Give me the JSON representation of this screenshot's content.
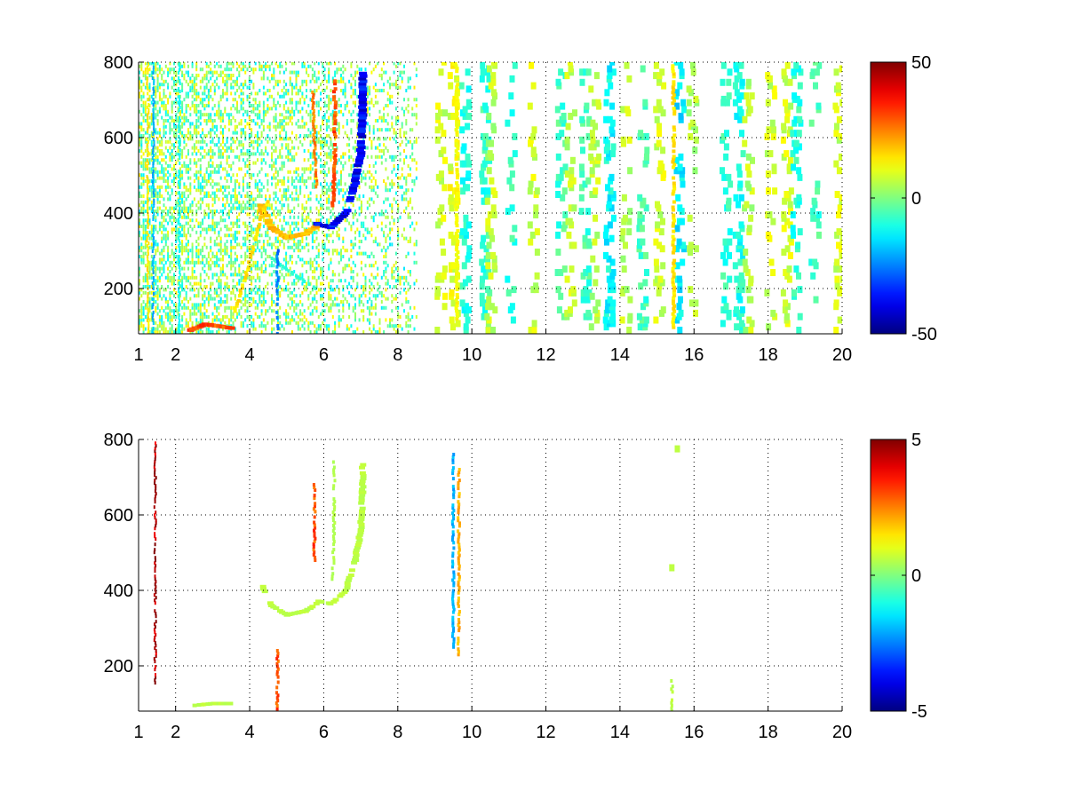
{
  "chart_data": [
    {
      "type": "heatmap",
      "title": "",
      "xlabel": "",
      "ylabel": "",
      "xlim": [
        1,
        20
      ],
      "ylim": [
        80,
        800
      ],
      "x_ticks": [
        1,
        2,
        4,
        6,
        8,
        10,
        12,
        14,
        16,
        18,
        20
      ],
      "y_ticks": [
        200,
        400,
        600,
        800
      ],
      "grid": true,
      "grid_style": "dotted",
      "colormap": "jet",
      "colorbar": {
        "min": -50,
        "max": 50,
        "ticks": [
          -50,
          0,
          50
        ]
      },
      "features": [
        {
          "kind": "band",
          "points": [
            [
              4.3,
              420
            ],
            [
              4.6,
              360
            ],
            [
              5.0,
              335
            ],
            [
              5.5,
              345
            ],
            [
              5.8,
              365
            ]
          ],
          "value": 20,
          "width": 9
        },
        {
          "kind": "band",
          "points": [
            [
              5.8,
              372
            ],
            [
              6.2,
              362
            ],
            [
              6.6,
              400
            ],
            [
              6.85,
              480
            ],
            [
              7.0,
              560
            ],
            [
              7.05,
              660
            ],
            [
              7.05,
              770
            ]
          ],
          "value": -38,
          "width": 9
        },
        {
          "kind": "band",
          "points": [
            [
              2.4,
              90
            ],
            [
              2.8,
              105
            ],
            [
              3.2,
              100
            ],
            [
              3.5,
              95
            ]
          ],
          "value": 30,
          "width": 8
        },
        {
          "kind": "band",
          "points": [
            [
              3.6,
              140
            ],
            [
              4.0,
              270
            ],
            [
              4.3,
              390
            ],
            [
              4.5,
              430
            ]
          ],
          "value": 15,
          "width": 4
        },
        {
          "kind": "band",
          "points": [
            [
              4.6,
              280
            ],
            [
              5.3,
              230
            ],
            [
              5.8,
              200
            ]
          ],
          "value": -8,
          "width": 3
        },
        {
          "kind": "band",
          "points": [
            [
              6.25,
              420
            ],
            [
              6.3,
              560
            ],
            [
              6.3,
              750
            ]
          ],
          "value": 30,
          "width": 4
        },
        {
          "kind": "band",
          "points": [
            [
              5.7,
              720
            ],
            [
              5.75,
              600
            ],
            [
              5.8,
              470
            ]
          ],
          "value": 25,
          "width": 3
        },
        {
          "kind": "band",
          "points": [
            [
              4.75,
              80
            ],
            [
              4.75,
              300
            ]
          ],
          "value": -25,
          "width": 3
        },
        {
          "kind": "band",
          "points": [
            [
              1.4,
              80
            ],
            [
              1.4,
              800
            ]
          ],
          "value": -20,
          "width": 2
        },
        {
          "kind": "band",
          "points": [
            [
              1.25,
              80
            ],
            [
              1.25,
              800
            ]
          ],
          "value": 15,
          "width": 2
        },
        {
          "kind": "band",
          "points": [
            [
              2.1,
              80
            ],
            [
              2.1,
              800
            ]
          ],
          "value": -12,
          "width": 2
        },
        {
          "kind": "band",
          "points": [
            [
              9.6,
              120
            ],
            [
              9.6,
              790
            ]
          ],
          "value": 12,
          "width": 4
        },
        {
          "kind": "band",
          "points": [
            [
              15.45,
              90
            ],
            [
              15.45,
              790
            ]
          ],
          "value": 15,
          "width": 4
        }
      ],
      "scatter_columns": [
        {
          "x": 9.1,
          "density": 0.28,
          "value": 8
        },
        {
          "x": 9.45,
          "density": 0.32,
          "value": 10
        },
        {
          "x": 9.75,
          "density": 0.3,
          "value": -10
        },
        {
          "x": 10.3,
          "density": 0.36,
          "value": -8
        },
        {
          "x": 10.45,
          "density": 0.34,
          "value": 6
        },
        {
          "x": 11.0,
          "density": 0.18,
          "value": -8
        },
        {
          "x": 11.6,
          "density": 0.18,
          "value": 8
        },
        {
          "x": 12.35,
          "density": 0.26,
          "value": -6
        },
        {
          "x": 12.6,
          "density": 0.24,
          "value": 6
        },
        {
          "x": 13.0,
          "density": 0.28,
          "value": -6
        },
        {
          "x": 13.25,
          "density": 0.3,
          "value": 6
        },
        {
          "x": 13.65,
          "density": 0.4,
          "value": -12
        },
        {
          "x": 14.1,
          "density": 0.22,
          "value": 6
        },
        {
          "x": 14.55,
          "density": 0.22,
          "value": -6
        },
        {
          "x": 15.0,
          "density": 0.32,
          "value": 8
        },
        {
          "x": 15.55,
          "density": 0.3,
          "value": -14
        },
        {
          "x": 15.9,
          "density": 0.22,
          "value": 6
        },
        {
          "x": 16.8,
          "density": 0.32,
          "value": -8
        },
        {
          "x": 17.15,
          "density": 0.38,
          "value": -10
        },
        {
          "x": 17.4,
          "density": 0.26,
          "value": 6
        },
        {
          "x": 18.0,
          "density": 0.24,
          "value": 8
        },
        {
          "x": 18.45,
          "density": 0.36,
          "value": 8
        },
        {
          "x": 18.7,
          "density": 0.34,
          "value": -8
        },
        {
          "x": 19.2,
          "density": 0.22,
          "value": -6
        },
        {
          "x": 19.85,
          "density": 0.26,
          "value": 8
        }
      ]
    },
    {
      "type": "heatmap",
      "title": "",
      "xlabel": "",
      "ylabel": "",
      "xlim": [
        1,
        20
      ],
      "ylim": [
        80,
        800
      ],
      "x_ticks": [
        1,
        2,
        4,
        6,
        8,
        10,
        12,
        14,
        16,
        18,
        20
      ],
      "y_ticks": [
        200,
        400,
        600,
        800
      ],
      "grid": true,
      "grid_style": "dotted",
      "colormap": "jet",
      "colorbar": {
        "min": -5,
        "max": 5,
        "ticks": [
          -5,
          0,
          5
        ]
      },
      "features": [
        {
          "kind": "band",
          "points": [
            [
              4.35,
              410
            ],
            [
              4.6,
              360
            ],
            [
              5.0,
              335
            ],
            [
              5.5,
              345
            ],
            [
              5.8,
              365
            ]
          ],
          "value": 0.6,
          "width": 7
        },
        {
          "kind": "band",
          "points": [
            [
              5.8,
              372
            ],
            [
              6.2,
              365
            ],
            [
              6.6,
              400
            ],
            [
              6.85,
              480
            ],
            [
              7.0,
              560
            ],
            [
              7.05,
              660
            ],
            [
              7.05,
              740
            ]
          ],
          "value": 0.6,
          "width": 7
        },
        {
          "kind": "band",
          "points": [
            [
              6.25,
              430
            ],
            [
              6.28,
              600
            ],
            [
              6.28,
              740
            ]
          ],
          "value": 0.5,
          "width": 3
        },
        {
          "kind": "band",
          "points": [
            [
              2.5,
              95
            ],
            [
              3.0,
              100
            ],
            [
              3.5,
              100
            ]
          ],
          "value": 0.6,
          "width": 5
        },
        {
          "kind": "band",
          "points": [
            [
              1.45,
              155
            ],
            [
              1.45,
              790
            ]
          ],
          "value": 4.5,
          "width": 2
        },
        {
          "kind": "band",
          "points": [
            [
              4.75,
              80
            ],
            [
              4.75,
              240
            ]
          ],
          "value": 3.0,
          "width": 3
        },
        {
          "kind": "band",
          "points": [
            [
              5.75,
              480
            ],
            [
              5.75,
              680
            ]
          ],
          "value": 3.0,
          "width": 3
        },
        {
          "kind": "band",
          "points": [
            [
              9.5,
              250
            ],
            [
              9.5,
              760
            ]
          ],
          "value": -2.0,
          "width": 3
        },
        {
          "kind": "band",
          "points": [
            [
              9.65,
              230
            ],
            [
              9.65,
              720
            ]
          ],
          "value": 2.0,
          "width": 3
        },
        {
          "kind": "band",
          "points": [
            [
              15.4,
              80
            ],
            [
              15.4,
              160
            ]
          ],
          "value": 0.6,
          "width": 3
        },
        {
          "kind": "point",
          "x": 15.55,
          "y": 775,
          "value": 0.6
        },
        {
          "kind": "point",
          "x": 15.4,
          "y": 460,
          "value": 0.6
        }
      ],
      "scatter_columns": []
    }
  ]
}
